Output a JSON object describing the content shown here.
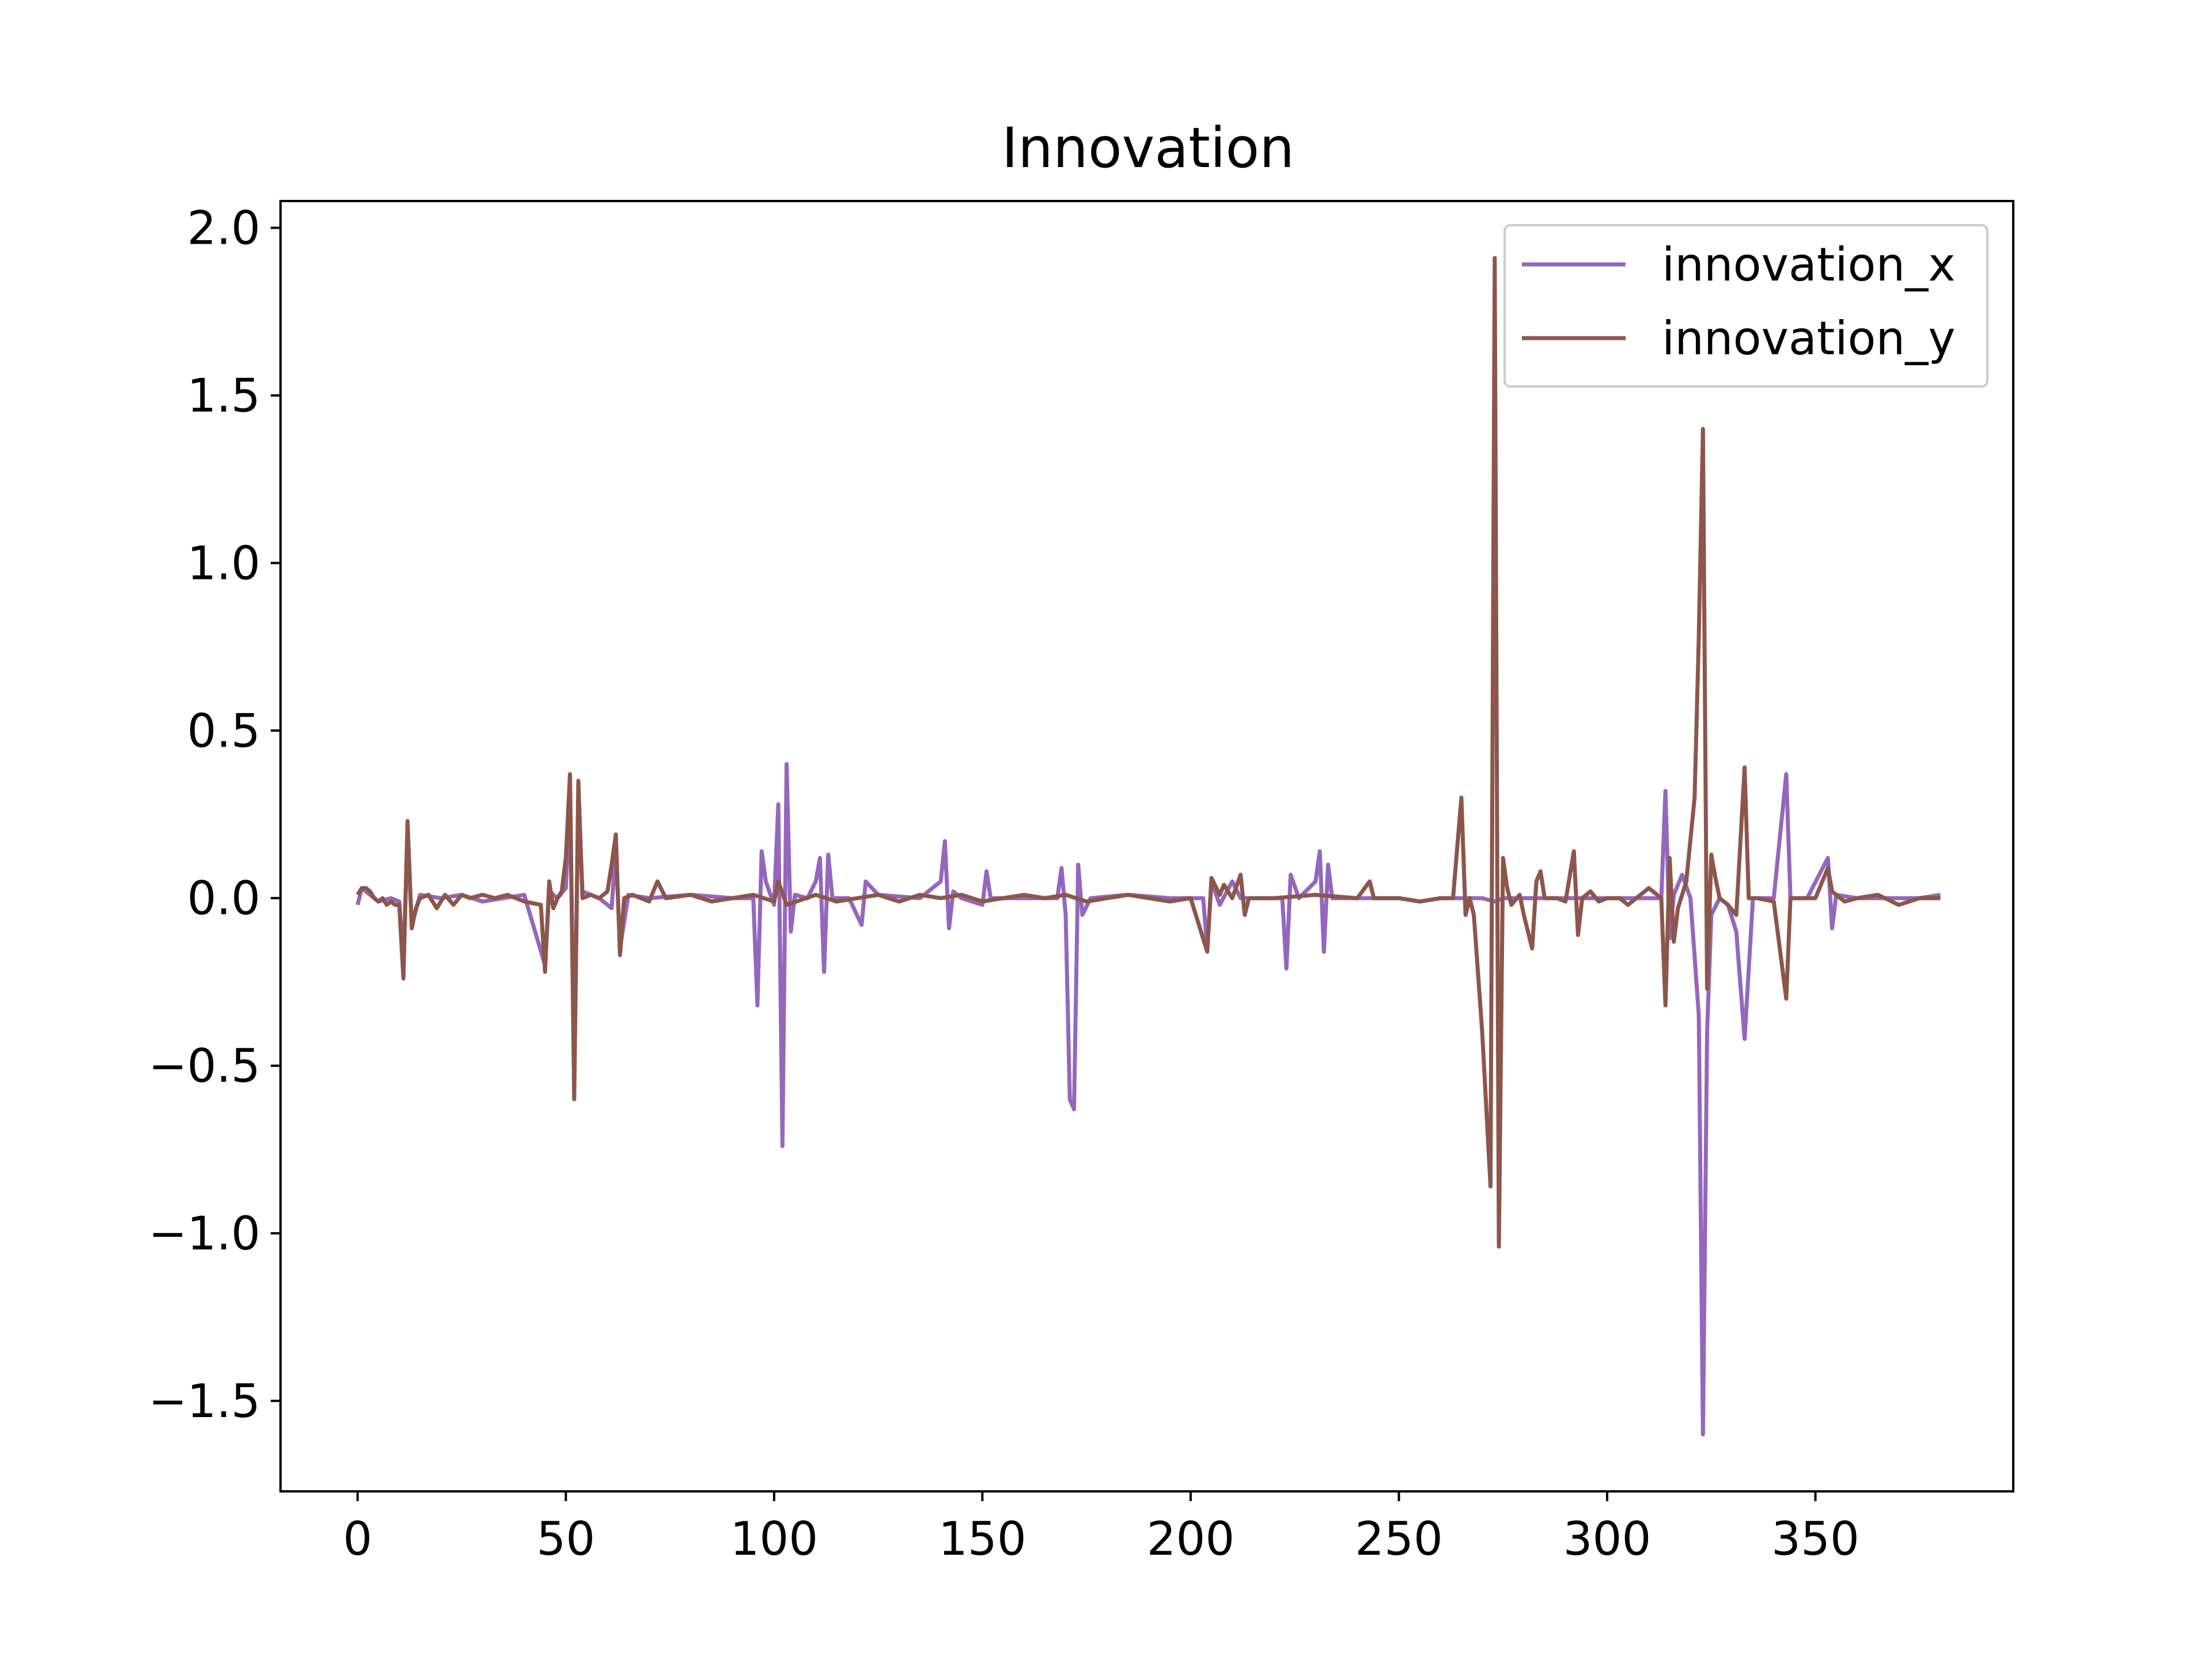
{
  "chart_data": {
    "type": "line",
    "title": "Innovation",
    "xlabel": "",
    "ylabel": "",
    "xlim": [
      -18.5,
      397.5
    ],
    "ylim": [
      -1.77,
      2.08
    ],
    "x_ticks": [
      0,
      50,
      100,
      150,
      200,
      250,
      300,
      350
    ],
    "x_tick_labels": [
      "0",
      "50",
      "100",
      "150",
      "200",
      "250",
      "300",
      "350"
    ],
    "y_ticks": [
      -1.5,
      -1.0,
      -0.5,
      0.0,
      0.5,
      1.0,
      1.5,
      2.0
    ],
    "y_tick_labels": [
      "−1.5",
      "−1.0",
      "−0.5",
      "0.0",
      "0.5",
      "1.0",
      "1.5",
      "2.0"
    ],
    "grid": false,
    "legend_position": "upper right",
    "series": [
      {
        "name": "innovation_x",
        "color": "#9467bd",
        "points": [
          [
            0,
            -0.02
          ],
          [
            1,
            0.03
          ],
          [
            3,
            0.01
          ],
          [
            5,
            -0.01
          ],
          [
            8,
            0.0
          ],
          [
            10,
            -0.01
          ],
          [
            11,
            -0.2
          ],
          [
            12,
            0.2
          ],
          [
            13,
            -0.08
          ],
          [
            15,
            0.01
          ],
          [
            20,
            0.0
          ],
          [
            25,
            0.01
          ],
          [
            30,
            -0.01
          ],
          [
            35,
            0.0
          ],
          [
            40,
            0.01
          ],
          [
            45,
            -0.2
          ],
          [
            46,
            0.02
          ],
          [
            48,
            0.0
          ],
          [
            50,
            0.03
          ],
          [
            51,
            0.3
          ],
          [
            52,
            -0.5
          ],
          [
            53,
            0.3
          ],
          [
            54,
            0.02
          ],
          [
            58,
            0.0
          ],
          [
            61,
            -0.03
          ],
          [
            62,
            0.15
          ],
          [
            63,
            -0.15
          ],
          [
            65,
            0.01
          ],
          [
            70,
            0.0
          ],
          [
            80,
            0.01
          ],
          [
            90,
            0.0
          ],
          [
            95,
            0.0
          ],
          [
            96,
            -0.32
          ],
          [
            97,
            0.14
          ],
          [
            98,
            0.05
          ],
          [
            100,
            -0.02
          ],
          [
            101,
            0.28
          ],
          [
            102,
            -0.74
          ],
          [
            103,
            0.4
          ],
          [
            104,
            -0.1
          ],
          [
            105,
            0.01
          ],
          [
            108,
            0.0
          ],
          [
            110,
            0.05
          ],
          [
            111,
            0.12
          ],
          [
            112,
            -0.22
          ],
          [
            113,
            0.13
          ],
          [
            114,
            0.0
          ],
          [
            118,
            0.0
          ],
          [
            121,
            -0.08
          ],
          [
            122,
            0.05
          ],
          [
            125,
            0.01
          ],
          [
            135,
            0.0
          ],
          [
            140,
            0.05
          ],
          [
            141,
            0.17
          ],
          [
            142,
            -0.09
          ],
          [
            143,
            0.02
          ],
          [
            145,
            0.0
          ],
          [
            150,
            -0.02
          ],
          [
            151,
            0.08
          ],
          [
            152,
            0.0
          ],
          [
            160,
            0.0
          ],
          [
            168,
            0.0
          ],
          [
            169,
            0.09
          ],
          [
            170,
            -0.05
          ],
          [
            171,
            -0.6
          ],
          [
            172,
            -0.63
          ],
          [
            173,
            0.1
          ],
          [
            174,
            -0.05
          ],
          [
            176,
            0.0
          ],
          [
            185,
            0.01
          ],
          [
            195,
            0.0
          ],
          [
            203,
            0.0
          ],
          [
            204,
            -0.15
          ],
          [
            205,
            0.05
          ],
          [
            207,
            -0.02
          ],
          [
            210,
            0.05
          ],
          [
            212,
            0.0
          ],
          [
            215,
            0.0
          ],
          [
            222,
            0.0
          ],
          [
            223,
            -0.21
          ],
          [
            224,
            0.07
          ],
          [
            226,
            0.0
          ],
          [
            230,
            0.05
          ],
          [
            231,
            0.14
          ],
          [
            232,
            -0.16
          ],
          [
            233,
            0.1
          ],
          [
            234,
            0.0
          ],
          [
            240,
            0.0
          ],
          [
            250,
            0.0
          ],
          [
            255,
            -0.01
          ],
          [
            260,
            0.0
          ],
          [
            265,
            0.0
          ],
          [
            270,
            0.0
          ],
          [
            273,
            -0.01
          ],
          [
            275,
            0.0
          ],
          [
            282,
            0.0
          ],
          [
            290,
            0.0
          ],
          [
            300,
            0.0
          ],
          [
            310,
            0.0
          ],
          [
            313,
            0.0
          ],
          [
            314,
            0.32
          ],
          [
            315,
            -0.12
          ],
          [
            316,
            0.01
          ],
          [
            318,
            0.07
          ],
          [
            320,
            0.0
          ],
          [
            322,
            -0.35
          ],
          [
            323,
            -1.6
          ],
          [
            324,
            -0.4
          ],
          [
            325,
            -0.05
          ],
          [
            327,
            0.0
          ],
          [
            329,
            -0.02
          ],
          [
            331,
            -0.1
          ],
          [
            333,
            -0.42
          ],
          [
            335,
            0.0
          ],
          [
            338,
            0.0
          ],
          [
            340,
            0.0
          ],
          [
            343,
            0.37
          ],
          [
            344,
            0.0
          ],
          [
            348,
            0.0
          ],
          [
            353,
            0.12
          ],
          [
            354,
            -0.09
          ],
          [
            355,
            0.01
          ],
          [
            360,
            0.0
          ],
          [
            365,
            0.0
          ],
          [
            370,
            0.0
          ],
          [
            375,
            0.0
          ],
          [
            380,
            0.01
          ]
        ]
      },
      {
        "name": "innovation_y",
        "color": "#8c564b",
        "points": [
          [
            0,
            0.01
          ],
          [
            1,
            0.03
          ],
          [
            2,
            0.03
          ],
          [
            3,
            0.02
          ],
          [
            4,
            0.0
          ],
          [
            5,
            -0.01
          ],
          [
            6,
            0.0
          ],
          [
            7,
            -0.02
          ],
          [
            8,
            -0.01
          ],
          [
            9,
            -0.02
          ],
          [
            10,
            -0.02
          ],
          [
            11,
            -0.24
          ],
          [
            12,
            0.23
          ],
          [
            13,
            -0.09
          ],
          [
            14,
            -0.03
          ],
          [
            15,
            0.0
          ],
          [
            17,
            0.01
          ],
          [
            19,
            -0.03
          ],
          [
            21,
            0.01
          ],
          [
            23,
            -0.02
          ],
          [
            25,
            0.01
          ],
          [
            27,
            0.0
          ],
          [
            30,
            0.01
          ],
          [
            33,
            0.0
          ],
          [
            36,
            0.01
          ],
          [
            40,
            -0.01
          ],
          [
            44,
            -0.02
          ],
          [
            45,
            -0.22
          ],
          [
            46,
            0.05
          ],
          [
            47,
            -0.03
          ],
          [
            48,
            0.0
          ],
          [
            49,
            0.02
          ],
          [
            50,
            0.12
          ],
          [
            51,
            0.37
          ],
          [
            52,
            -0.6
          ],
          [
            53,
            0.35
          ],
          [
            54,
            0.0
          ],
          [
            56,
            0.01
          ],
          [
            58,
            0.0
          ],
          [
            60,
            0.02
          ],
          [
            61,
            0.1
          ],
          [
            62,
            0.19
          ],
          [
            63,
            -0.17
          ],
          [
            64,
            0.0
          ],
          [
            66,
            0.01
          ],
          [
            70,
            -0.01
          ],
          [
            72,
            0.05
          ],
          [
            74,
            0.0
          ],
          [
            80,
            0.01
          ],
          [
            85,
            -0.01
          ],
          [
            90,
            0.0
          ],
          [
            95,
            0.01
          ],
          [
            100,
            -0.01
          ],
          [
            101,
            0.05
          ],
          [
            103,
            -0.02
          ],
          [
            110,
            0.01
          ],
          [
            115,
            -0.01
          ],
          [
            120,
            0.0
          ],
          [
            125,
            0.01
          ],
          [
            130,
            -0.01
          ],
          [
            135,
            0.01
          ],
          [
            140,
            0.0
          ],
          [
            145,
            0.01
          ],
          [
            150,
            -0.01
          ],
          [
            155,
            0.0
          ],
          [
            160,
            0.01
          ],
          [
            165,
            0.0
          ],
          [
            170,
            0.01
          ],
          [
            175,
            -0.01
          ],
          [
            180,
            0.0
          ],
          [
            185,
            0.01
          ],
          [
            190,
            0.0
          ],
          [
            195,
            -0.01
          ],
          [
            200,
            0.0
          ],
          [
            204,
            -0.16
          ],
          [
            205,
            0.06
          ],
          [
            207,
            0.01
          ],
          [
            208,
            0.04
          ],
          [
            210,
            0.0
          ],
          [
            212,
            0.07
          ],
          [
            213,
            -0.05
          ],
          [
            214,
            0.0
          ],
          [
            220,
            0.0
          ],
          [
            230,
            0.01
          ],
          [
            240,
            0.0
          ],
          [
            243,
            0.05
          ],
          [
            244,
            0.0
          ],
          [
            250,
            0.0
          ],
          [
            255,
            -0.01
          ],
          [
            260,
            0.0
          ],
          [
            263,
            0.0
          ],
          [
            265,
            0.3
          ],
          [
            266,
            -0.05
          ],
          [
            267,
            0.0
          ],
          [
            268,
            -0.05
          ],
          [
            270,
            -0.4
          ],
          [
            272,
            -0.86
          ],
          [
            273,
            1.91
          ],
          [
            274,
            -1.04
          ],
          [
            275,
            0.12
          ],
          [
            276,
            0.03
          ],
          [
            277,
            -0.02
          ],
          [
            279,
            0.01
          ],
          [
            280,
            -0.05
          ],
          [
            282,
            -0.15
          ],
          [
            283,
            0.05
          ],
          [
            284,
            0.08
          ],
          [
            285,
            0.0
          ],
          [
            288,
            0.0
          ],
          [
            290,
            -0.01
          ],
          [
            292,
            0.14
          ],
          [
            293,
            -0.11
          ],
          [
            294,
            0.0
          ],
          [
            296,
            0.02
          ],
          [
            298,
            -0.01
          ],
          [
            300,
            0.0
          ],
          [
            303,
            0.0
          ],
          [
            305,
            -0.02
          ],
          [
            307,
            0.0
          ],
          [
            310,
            0.03
          ],
          [
            313,
            0.0
          ],
          [
            314,
            -0.32
          ],
          [
            315,
            0.12
          ],
          [
            316,
            -0.13
          ],
          [
            317,
            -0.03
          ],
          [
            319,
            0.05
          ],
          [
            321,
            0.3
          ],
          [
            322,
            0.78
          ],
          [
            323,
            1.4
          ],
          [
            324,
            -0.27
          ],
          [
            325,
            0.13
          ],
          [
            326,
            0.06
          ],
          [
            327,
            0.0
          ],
          [
            329,
            -0.02
          ],
          [
            331,
            -0.05
          ],
          [
            333,
            0.39
          ],
          [
            334,
            0.0
          ],
          [
            336,
            0.0
          ],
          [
            340,
            -0.01
          ],
          [
            343,
            -0.3
          ],
          [
            344,
            0.0
          ],
          [
            347,
            0.0
          ],
          [
            350,
            0.0
          ],
          [
            353,
            0.09
          ],
          [
            354,
            0.02
          ],
          [
            357,
            -0.01
          ],
          [
            360,
            0.0
          ],
          [
            365,
            0.01
          ],
          [
            370,
            -0.02
          ],
          [
            375,
            0.0
          ],
          [
            380,
            0.0
          ]
        ]
      }
    ]
  }
}
